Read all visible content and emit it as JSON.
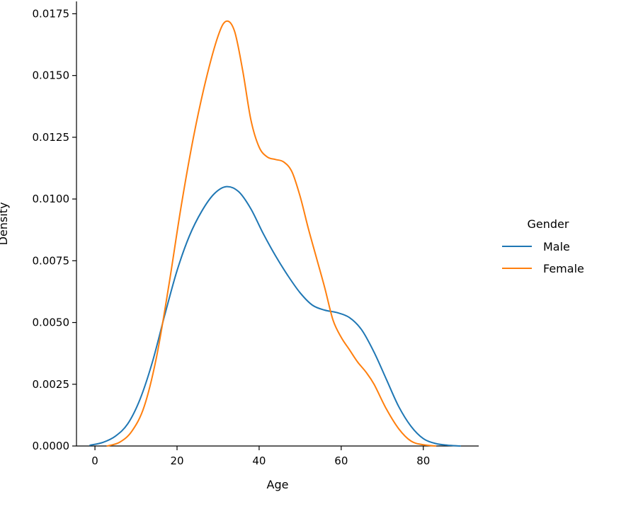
{
  "chart_data": {
    "type": "line",
    "title": "",
    "xlabel": "Age",
    "ylabel": "Density",
    "xlim": [
      -4.5,
      93.5
    ],
    "ylim": [
      0,
      0.018
    ],
    "x_ticks": [
      0,
      20,
      40,
      60,
      80
    ],
    "x_tick_labels": [
      "0",
      "20",
      "40",
      "60",
      "80"
    ],
    "y_ticks": [
      0,
      0.0025,
      0.005,
      0.0075,
      0.01,
      0.0125,
      0.015,
      0.0175
    ],
    "y_tick_labels": [
      "0.0000",
      "0.0025",
      "0.0050",
      "0.0075",
      "0.0100",
      "0.0125",
      "0.0150",
      "0.0175"
    ],
    "grid": false,
    "legend": {
      "title": "Gender",
      "placement": "right"
    },
    "series": [
      {
        "name": "Male",
        "color": "#1f77b4",
        "points": [
          [
            -1.2,
            3e-05
          ],
          [
            2,
            0.00015
          ],
          [
            5,
            0.0004
          ],
          [
            8,
            0.0009
          ],
          [
            11,
            0.0019
          ],
          [
            14,
            0.0034
          ],
          [
            17,
            0.0053
          ],
          [
            20,
            0.0071
          ],
          [
            23,
            0.0085
          ],
          [
            26,
            0.0095
          ],
          [
            29,
            0.0102
          ],
          [
            32,
            0.0105
          ],
          [
            35,
            0.0103
          ],
          [
            38,
            0.0096
          ],
          [
            41,
            0.0086
          ],
          [
            44,
            0.0077
          ],
          [
            47,
            0.0069
          ],
          [
            50,
            0.0062
          ],
          [
            53,
            0.0057
          ],
          [
            56,
            0.0055
          ],
          [
            59,
            0.0054
          ],
          [
            62,
            0.0052
          ],
          [
            65,
            0.0047
          ],
          [
            68,
            0.0038
          ],
          [
            71,
            0.0027
          ],
          [
            74,
            0.0016
          ],
          [
            77,
            0.0008
          ],
          [
            80,
            0.0003
          ],
          [
            83,
            0.0001
          ],
          [
            86,
            3e-05
          ],
          [
            89,
            0.0
          ]
        ]
      },
      {
        "name": "Female",
        "color": "#ff7f0e",
        "points": [
          [
            3,
            0.0
          ],
          [
            6,
            0.00015
          ],
          [
            9,
            0.0006
          ],
          [
            12,
            0.0016
          ],
          [
            15,
            0.0036
          ],
          [
            18,
            0.0065
          ],
          [
            21,
            0.0097
          ],
          [
            24,
            0.0125
          ],
          [
            27,
            0.0148
          ],
          [
            30,
            0.0166
          ],
          [
            32,
            0.0172
          ],
          [
            34,
            0.0168
          ],
          [
            36,
            0.0152
          ],
          [
            38,
            0.0132
          ],
          [
            40,
            0.0121
          ],
          [
            42,
            0.0117
          ],
          [
            44,
            0.0116
          ],
          [
            46,
            0.0115
          ],
          [
            48,
            0.0111
          ],
          [
            50,
            0.0101
          ],
          [
            52,
            0.0088
          ],
          [
            54,
            0.0076
          ],
          [
            56,
            0.0064
          ],
          [
            58,
            0.0051
          ],
          [
            60,
            0.0044
          ],
          [
            62,
            0.0039
          ],
          [
            64,
            0.0034
          ],
          [
            66,
            0.003
          ],
          [
            68,
            0.0025
          ],
          [
            71,
            0.0015
          ],
          [
            74,
            0.0007
          ],
          [
            77,
            0.0002
          ],
          [
            80,
            5e-05
          ],
          [
            83,
            0.0
          ]
        ]
      }
    ]
  }
}
